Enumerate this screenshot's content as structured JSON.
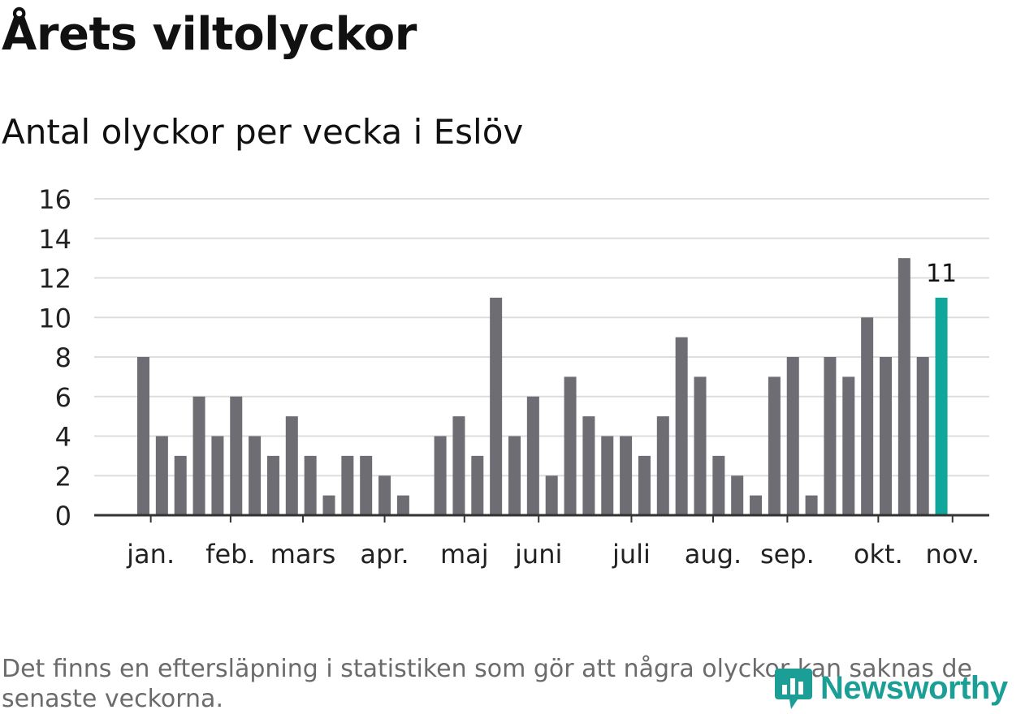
{
  "chart_data": {
    "type": "bar",
    "title": "Årets viltolyckor",
    "subtitle": "Antal olyckor per vecka i Eslöv",
    "xlabel": "",
    "ylabel": "",
    "ylim": [
      0,
      16
    ],
    "yticks": [
      0,
      2,
      4,
      6,
      8,
      10,
      12,
      14,
      16
    ],
    "grid": true,
    "values": [
      8,
      4,
      3,
      6,
      4,
      6,
      4,
      3,
      5,
      3,
      1,
      3,
      3,
      2,
      1,
      0,
      4,
      5,
      3,
      11,
      4,
      6,
      2,
      7,
      5,
      4,
      4,
      3,
      5,
      9,
      7,
      3,
      2,
      1,
      7,
      8,
      1,
      8,
      7,
      10,
      8,
      13,
      8,
      11
    ],
    "month_ticks": [
      {
        "label": "jan.",
        "week": 0.4
      },
      {
        "label": "feb.",
        "week": 4.7
      },
      {
        "label": "mars",
        "week": 8.6
      },
      {
        "label": "apr.",
        "week": 13.0
      },
      {
        "label": "maj",
        "week": 17.3
      },
      {
        "label": "juni",
        "week": 21.3
      },
      {
        "label": "juli",
        "week": 26.3
      },
      {
        "label": "aug.",
        "week": 30.7
      },
      {
        "label": "sep.",
        "week": 34.7
      },
      {
        "label": "okt.",
        "week": 39.6
      },
      {
        "label": "nov.",
        "week": 43.6
      }
    ],
    "highlight_index": 43,
    "highlight_label": "11",
    "colors": {
      "bar": "#6e6d73",
      "highlight": "#0ea79a",
      "grid": "#dddddd",
      "axis": "#333333"
    }
  },
  "footnote": "Det finns en eftersläpning i statistiken som gör att några olyckor kan saknas de senaste veckorna.",
  "logo": {
    "text": "Newsworthy",
    "icon": "newsworthy-logo-icon"
  }
}
